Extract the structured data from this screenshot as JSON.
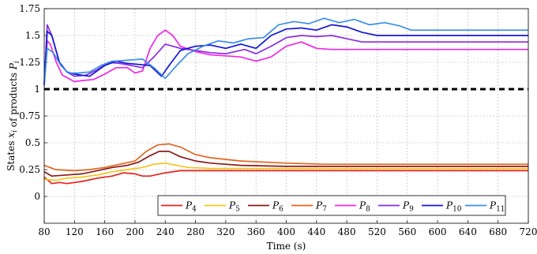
{
  "chart_data": {
    "type": "line",
    "xlabel": "Time (s)",
    "ylabel": "States x_i of products P_i",
    "xlim": [
      80,
      720
    ],
    "ylim": [
      -0.25,
      1.75
    ],
    "xticks": [
      80,
      120,
      160,
      200,
      240,
      280,
      320,
      360,
      400,
      440,
      480,
      520,
      560,
      600,
      640,
      680,
      720
    ],
    "yticks": [
      0,
      0.25,
      0.5,
      0.75,
      1,
      1.25,
      1.5,
      1.75
    ],
    "ytick_labels": [
      "0",
      "0.25",
      "0.5",
      "0.75",
      "1",
      "1.25",
      "1.5",
      "1.75"
    ],
    "grid": true,
    "legend_position": "bottom-right",
    "reference_line": {
      "y": 1,
      "style": "dashed",
      "color": "#000000"
    },
    "series": [
      {
        "name": "P4",
        "color": "#e8231e",
        "points": [
          [
            80,
            0.18
          ],
          [
            90,
            0.12
          ],
          [
            100,
            0.13
          ],
          [
            110,
            0.12
          ],
          [
            130,
            0.14
          ],
          [
            150,
            0.17
          ],
          [
            170,
            0.19
          ],
          [
            185,
            0.22
          ],
          [
            200,
            0.21
          ],
          [
            210,
            0.19
          ],
          [
            220,
            0.19
          ],
          [
            240,
            0.22
          ],
          [
            260,
            0.24
          ],
          [
            300,
            0.24
          ],
          [
            720,
            0.24
          ]
        ]
      },
      {
        "name": "P5",
        "color": "#f5c518",
        "points": [
          [
            80,
            0.16
          ],
          [
            95,
            0.15
          ],
          [
            110,
            0.17
          ],
          [
            130,
            0.18
          ],
          [
            150,
            0.2
          ],
          [
            170,
            0.23
          ],
          [
            190,
            0.25
          ],
          [
            210,
            0.27
          ],
          [
            225,
            0.3
          ],
          [
            240,
            0.31
          ],
          [
            255,
            0.29
          ],
          [
            270,
            0.27
          ],
          [
            300,
            0.26
          ],
          [
            720,
            0.26
          ]
        ]
      },
      {
        "name": "P6",
        "color": "#8b1a1a",
        "points": [
          [
            80,
            0.23
          ],
          [
            90,
            0.19
          ],
          [
            110,
            0.2
          ],
          [
            130,
            0.21
          ],
          [
            150,
            0.24
          ],
          [
            170,
            0.27
          ],
          [
            190,
            0.29
          ],
          [
            205,
            0.32
          ],
          [
            220,
            0.38
          ],
          [
            232,
            0.42
          ],
          [
            245,
            0.42
          ],
          [
            260,
            0.37
          ],
          [
            280,
            0.33
          ],
          [
            300,
            0.31
          ],
          [
            340,
            0.29
          ],
          [
            400,
            0.28
          ],
          [
            720,
            0.28
          ]
        ]
      },
      {
        "name": "P7",
        "color": "#e2661e",
        "points": [
          [
            80,
            0.29
          ],
          [
            95,
            0.25
          ],
          [
            120,
            0.24
          ],
          [
            140,
            0.25
          ],
          [
            160,
            0.27
          ],
          [
            180,
            0.3
          ],
          [
            200,
            0.33
          ],
          [
            215,
            0.42
          ],
          [
            230,
            0.48
          ],
          [
            245,
            0.49
          ],
          [
            260,
            0.46
          ],
          [
            280,
            0.39
          ],
          [
            300,
            0.36
          ],
          [
            340,
            0.33
          ],
          [
            400,
            0.31
          ],
          [
            450,
            0.3
          ],
          [
            720,
            0.3
          ]
        ]
      },
      {
        "name": "P8",
        "color": "#ef28e6",
        "points": [
          [
            80,
            1.06
          ],
          [
            84,
            1.45
          ],
          [
            88,
            1.42
          ],
          [
            96,
            1.25
          ],
          [
            104,
            1.13
          ],
          [
            112,
            1.1
          ],
          [
            120,
            1.07
          ],
          [
            130,
            1.08
          ],
          [
            145,
            1.09
          ],
          [
            160,
            1.14
          ],
          [
            175,
            1.2
          ],
          [
            190,
            1.2
          ],
          [
            200,
            1.15
          ],
          [
            210,
            1.17
          ],
          [
            220,
            1.38
          ],
          [
            230,
            1.5
          ],
          [
            240,
            1.55
          ],
          [
            250,
            1.5
          ],
          [
            260,
            1.4
          ],
          [
            280,
            1.35
          ],
          [
            300,
            1.32
          ],
          [
            320,
            1.31
          ],
          [
            340,
            1.3
          ],
          [
            360,
            1.26
          ],
          [
            380,
            1.3
          ],
          [
            400,
            1.4
          ],
          [
            420,
            1.44
          ],
          [
            440,
            1.38
          ],
          [
            460,
            1.37
          ],
          [
            720,
            1.37
          ]
        ]
      },
      {
        "name": "P9",
        "color": "#8a2be2",
        "points": [
          [
            80,
            1.05
          ],
          [
            84,
            1.6
          ],
          [
            90,
            1.5
          ],
          [
            100,
            1.25
          ],
          [
            110,
            1.16
          ],
          [
            120,
            1.12
          ],
          [
            135,
            1.13
          ],
          [
            150,
            1.18
          ],
          [
            165,
            1.25
          ],
          [
            180,
            1.24
          ],
          [
            195,
            1.22
          ],
          [
            210,
            1.2
          ],
          [
            225,
            1.3
          ],
          [
            240,
            1.42
          ],
          [
            260,
            1.38
          ],
          [
            280,
            1.36
          ],
          [
            300,
            1.34
          ],
          [
            320,
            1.33
          ],
          [
            345,
            1.37
          ],
          [
            360,
            1.33
          ],
          [
            380,
            1.4
          ],
          [
            400,
            1.48
          ],
          [
            420,
            1.5
          ],
          [
            440,
            1.49
          ],
          [
            460,
            1.5
          ],
          [
            480,
            1.47
          ],
          [
            500,
            1.44
          ],
          [
            720,
            1.44
          ]
        ]
      },
      {
        "name": "P10",
        "color": "#1515d8",
        "points": [
          [
            80,
            1.04
          ],
          [
            84,
            1.54
          ],
          [
            90,
            1.5
          ],
          [
            100,
            1.25
          ],
          [
            110,
            1.16
          ],
          [
            120,
            1.14
          ],
          [
            140,
            1.12
          ],
          [
            160,
            1.22
          ],
          [
            175,
            1.26
          ],
          [
            190,
            1.24
          ],
          [
            205,
            1.23
          ],
          [
            220,
            1.22
          ],
          [
            235,
            1.12
          ],
          [
            245,
            1.22
          ],
          [
            260,
            1.36
          ],
          [
            280,
            1.4
          ],
          [
            300,
            1.41
          ],
          [
            320,
            1.38
          ],
          [
            340,
            1.42
          ],
          [
            360,
            1.38
          ],
          [
            380,
            1.5
          ],
          [
            400,
            1.56
          ],
          [
            420,
            1.57
          ],
          [
            440,
            1.55
          ],
          [
            460,
            1.6
          ],
          [
            480,
            1.58
          ],
          [
            500,
            1.53
          ],
          [
            520,
            1.5
          ],
          [
            720,
            1.5
          ]
        ]
      },
      {
        "name": "P11",
        "color": "#3a8ee8",
        "points": [
          [
            80,
            1.03
          ],
          [
            84,
            1.38
          ],
          [
            92,
            1.34
          ],
          [
            102,
            1.22
          ],
          [
            112,
            1.15
          ],
          [
            125,
            1.15
          ],
          [
            140,
            1.16
          ],
          [
            155,
            1.22
          ],
          [
            170,
            1.26
          ],
          [
            190,
            1.27
          ],
          [
            210,
            1.28
          ],
          [
            225,
            1.2
          ],
          [
            240,
            1.1
          ],
          [
            255,
            1.22
          ],
          [
            270,
            1.33
          ],
          [
            290,
            1.4
          ],
          [
            310,
            1.45
          ],
          [
            330,
            1.43
          ],
          [
            350,
            1.47
          ],
          [
            370,
            1.48
          ],
          [
            390,
            1.6
          ],
          [
            410,
            1.63
          ],
          [
            430,
            1.61
          ],
          [
            450,
            1.66
          ],
          [
            470,
            1.62
          ],
          [
            490,
            1.65
          ],
          [
            510,
            1.6
          ],
          [
            530,
            1.62
          ],
          [
            550,
            1.59
          ],
          [
            565,
            1.55
          ],
          [
            720,
            1.55
          ]
        ]
      }
    ]
  }
}
